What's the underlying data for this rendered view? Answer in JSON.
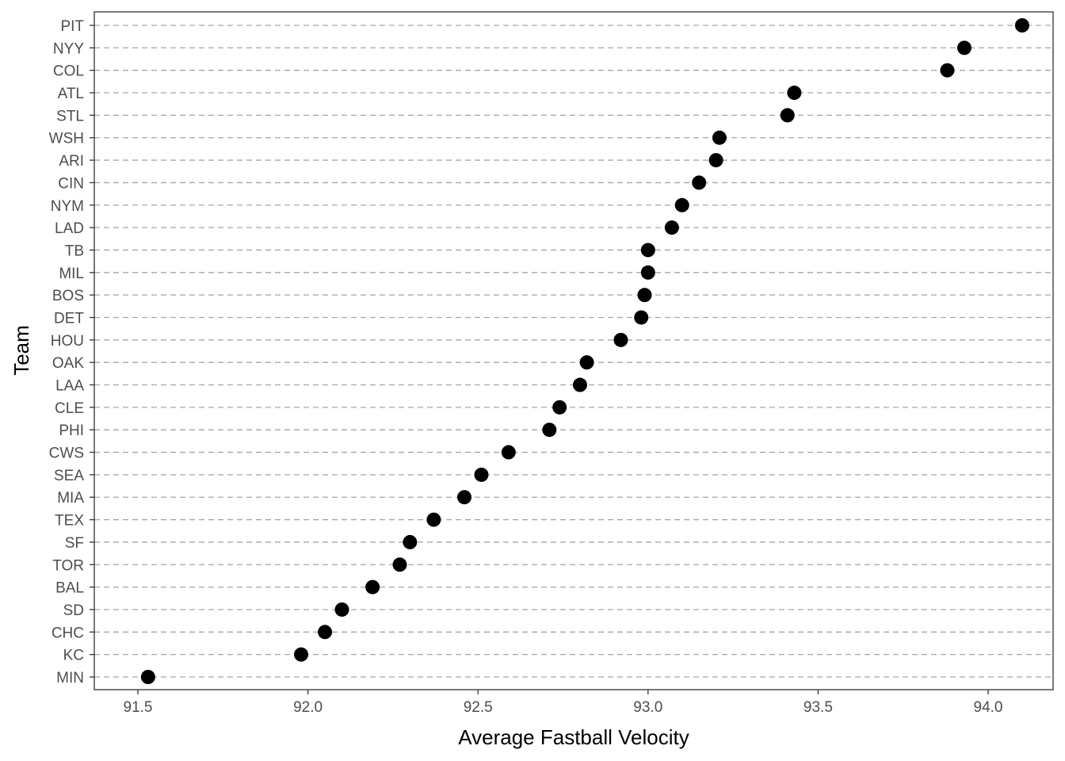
{
  "chart_data": {
    "type": "scatter",
    "xlabel": "Average Fastball Velocity",
    "ylabel": "Team",
    "xlim": [
      91.4,
      94.2
    ],
    "x_ticks": [
      91.5,
      92.0,
      92.5,
      93.0,
      93.5,
      94.0
    ],
    "x_tick_labels": [
      "91.5",
      "92.0",
      "92.5",
      "93.0",
      "93.5",
      "94.0"
    ],
    "grid": "dashed horizontal per category",
    "categories": [
      "PIT",
      "NYY",
      "COL",
      "ATL",
      "STL",
      "WSH",
      "ARI",
      "CIN",
      "NYM",
      "LAD",
      "TB",
      "MIL",
      "BOS",
      "DET",
      "HOU",
      "OAK",
      "LAA",
      "CLE",
      "PHI",
      "CWS",
      "SEA",
      "MIA",
      "TEX",
      "SF",
      "TOR",
      "BAL",
      "SD",
      "CHC",
      "KC",
      "MIN"
    ],
    "values": [
      94.1,
      93.93,
      93.88,
      93.43,
      93.41,
      93.21,
      93.2,
      93.15,
      93.1,
      93.07,
      93.0,
      93.0,
      92.99,
      92.98,
      92.92,
      92.82,
      92.8,
      92.74,
      92.71,
      92.59,
      92.51,
      92.46,
      92.37,
      92.3,
      92.27,
      92.19,
      92.1,
      92.05,
      91.98,
      91.53
    ]
  }
}
